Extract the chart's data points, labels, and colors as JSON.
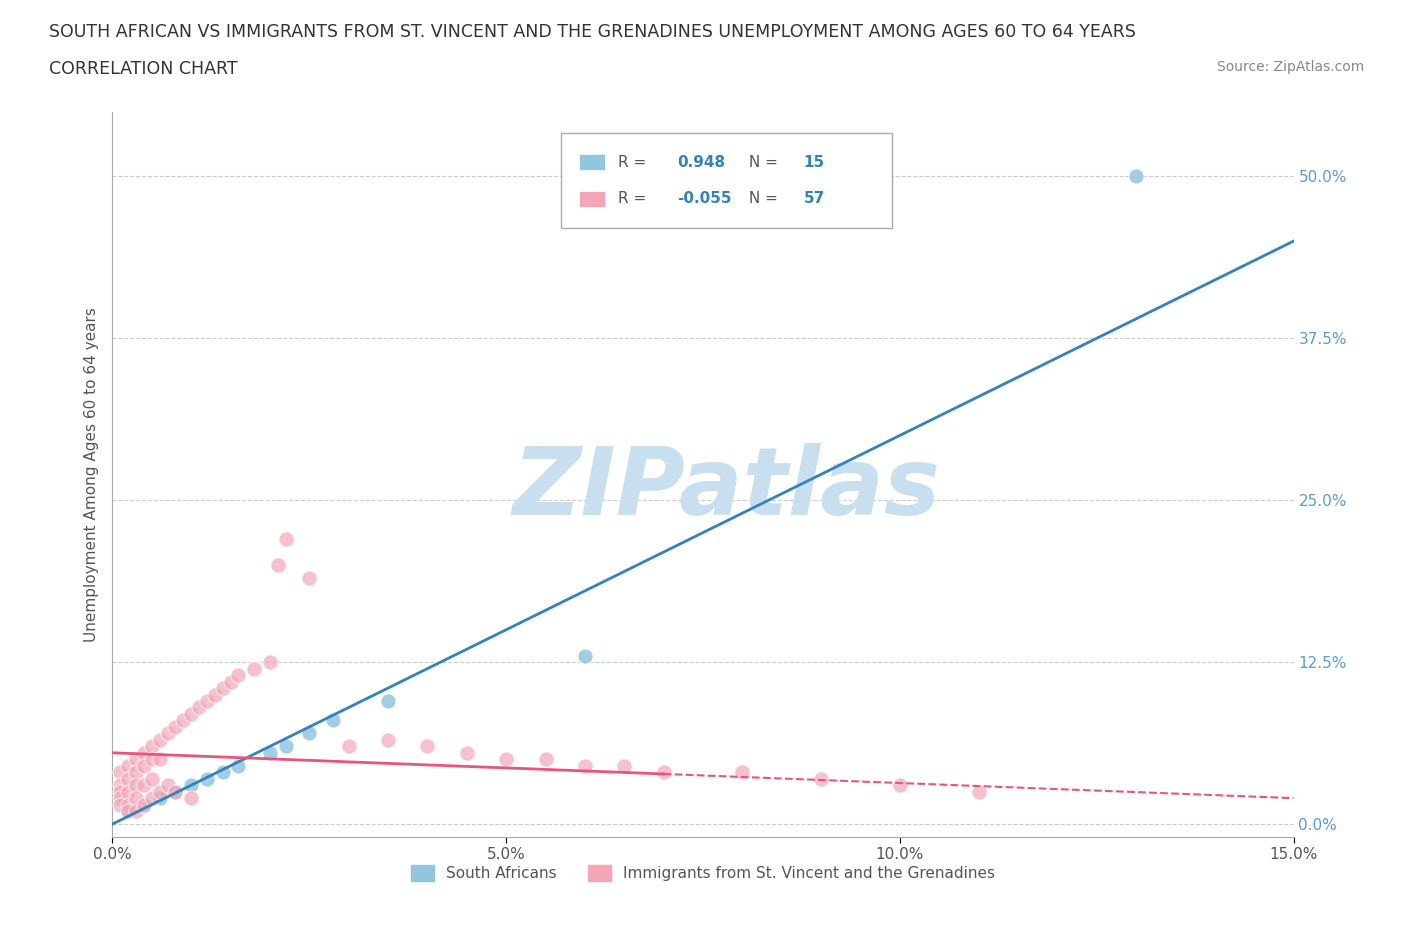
{
  "title_line1": "SOUTH AFRICAN VS IMMIGRANTS FROM ST. VINCENT AND THE GRENADINES UNEMPLOYMENT AMONG AGES 60 TO 64 YEARS",
  "title_line2": "CORRELATION CHART",
  "source_text": "Source: ZipAtlas.com",
  "ylabel": "Unemployment Among Ages 60 to 64 years",
  "xlim": [
    0.0,
    0.15
  ],
  "ylim": [
    -0.01,
    0.55
  ],
  "yticks": [
    0.0,
    0.125,
    0.25,
    0.375,
    0.5
  ],
  "ytick_labels": [
    "0.0%",
    "12.5%",
    "25.0%",
    "37.5%",
    "50.0%"
  ],
  "xticks": [
    0.0,
    0.05,
    0.1,
    0.15
  ],
  "xtick_labels": [
    "0.0%",
    "5.0%",
    "10.0%",
    "15.0%"
  ],
  "gridline_color": "#cccccc",
  "background_color": "#ffffff",
  "watermark_text": "ZIPatlas",
  "watermark_color": "#c8dff0",
  "blue_color": "#92c5de",
  "blue_line_color": "#3182bd",
  "pink_color": "#f4a6b8",
  "pink_line_color": "#e8547a",
  "legend_label1": "South Africans",
  "legend_label2": "Immigrants from St. Vincent and the Grenadines",
  "blue_points_x": [
    0.002,
    0.004,
    0.006,
    0.008,
    0.01,
    0.012,
    0.014,
    0.016,
    0.02,
    0.022,
    0.025,
    0.028,
    0.035,
    0.06,
    0.13
  ],
  "blue_points_y": [
    0.01,
    0.015,
    0.02,
    0.025,
    0.03,
    0.035,
    0.04,
    0.045,
    0.055,
    0.06,
    0.07,
    0.08,
    0.095,
    0.13,
    0.5
  ],
  "pink_points_x": [
    0.001,
    0.001,
    0.001,
    0.001,
    0.001,
    0.002,
    0.002,
    0.002,
    0.002,
    0.002,
    0.003,
    0.003,
    0.003,
    0.003,
    0.003,
    0.004,
    0.004,
    0.004,
    0.004,
    0.005,
    0.005,
    0.005,
    0.005,
    0.006,
    0.006,
    0.006,
    0.007,
    0.007,
    0.008,
    0.008,
    0.009,
    0.01,
    0.01,
    0.011,
    0.012,
    0.013,
    0.014,
    0.015,
    0.016,
    0.018,
    0.02,
    0.021,
    0.022,
    0.025,
    0.03,
    0.035,
    0.04,
    0.045,
    0.05,
    0.055,
    0.06,
    0.065,
    0.07,
    0.08,
    0.09,
    0.1,
    0.11
  ],
  "pink_points_y": [
    0.04,
    0.03,
    0.025,
    0.02,
    0.015,
    0.045,
    0.035,
    0.025,
    0.015,
    0.01,
    0.05,
    0.04,
    0.03,
    0.02,
    0.01,
    0.055,
    0.045,
    0.03,
    0.015,
    0.06,
    0.05,
    0.035,
    0.02,
    0.065,
    0.05,
    0.025,
    0.07,
    0.03,
    0.075,
    0.025,
    0.08,
    0.085,
    0.02,
    0.09,
    0.095,
    0.1,
    0.105,
    0.11,
    0.115,
    0.12,
    0.125,
    0.2,
    0.22,
    0.19,
    0.06,
    0.065,
    0.06,
    0.055,
    0.05,
    0.05,
    0.045,
    0.045,
    0.04,
    0.04,
    0.035,
    0.03,
    0.025
  ],
  "blue_line_x0": 0.0,
  "blue_line_y0": 0.0,
  "blue_line_x1": 0.15,
  "blue_line_y1": 0.45,
  "pink_line_x0": 0.0,
  "pink_line_y0": 0.055,
  "pink_line_x1": 0.15,
  "pink_line_y1": 0.02
}
